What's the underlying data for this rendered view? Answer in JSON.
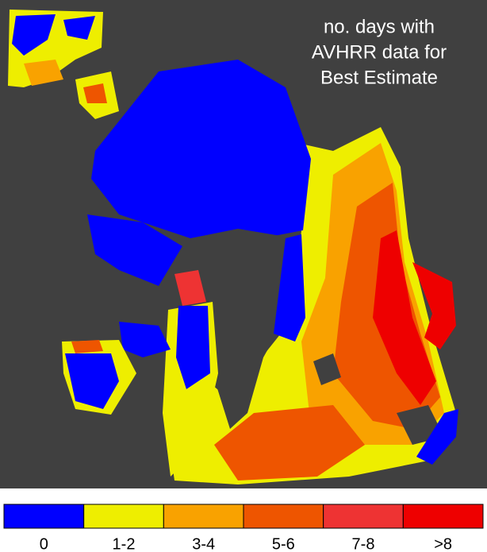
{
  "title": [
    "no. days with",
    "AVHRR data for",
    "Best Estimate"
  ],
  "legend": {
    "items": [
      {
        "label": "0",
        "color": "#0000ff"
      },
      {
        "label": "1-2",
        "color": "#eeee00"
      },
      {
        "label": "3-4",
        "color": "#f9a200"
      },
      {
        "label": "5-6",
        "color": "#ee5500"
      },
      {
        "label": "7-8",
        "color": "#ee3333"
      },
      {
        "label": ">8",
        "color": "#ee0000"
      }
    ]
  }
}
